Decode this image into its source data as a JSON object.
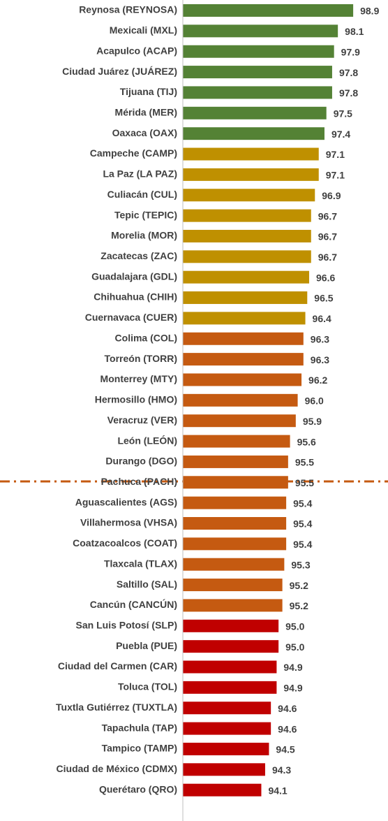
{
  "chart_data": {
    "type": "barh",
    "categories": [
      "Reynosa (REYNOSA)",
      "Mexicali (MXL)",
      "Acapulco (ACAP)",
      "Ciudad Juárez (JUÁREZ)",
      "Tijuana (TIJ)",
      "Mérida (MER)",
      "Oaxaca (OAX)",
      "Campeche (CAMP)",
      "La Paz (LA PAZ)",
      "Culiacán (CUL)",
      "Tepic (TEPIC)",
      "Morelia (MOR)",
      "Zacatecas (ZAC)",
      "Guadalajara (GDL)",
      "Chihuahua (CHIH)",
      "Cuernavaca (CUER)",
      "Colima (COL)",
      "Torreón (TORR)",
      "Monterrey (MTY)",
      "Hermosillo (HMO)",
      "Veracruz (VER)",
      "León (LEÓN)",
      "Durango (DGO)",
      "Pachuca (PACH)",
      "Aguascalientes (AGS)",
      "Villahermosa (VHSA)",
      "Coatzacoalcos (COAT)",
      "Tlaxcala (TLAX)",
      "Saltillo (SAL)",
      "Cancún (CANCÚN)",
      "San Luis Potosí (SLP)",
      "Puebla (PUE)",
      "Ciudad del Carmen (CAR)",
      "Toluca (TOL)",
      "Tuxtla Gutiérrez (TUXTLA)",
      "Tapachula (TAP)",
      "Tampico (TAMP)",
      "Ciudad de México (CDMX)",
      "Querétaro (QRO)"
    ],
    "values": [
      98.9,
      98.1,
      97.9,
      97.8,
      97.8,
      97.5,
      97.4,
      97.1,
      97.1,
      96.9,
      96.7,
      96.7,
      96.7,
      96.6,
      96.5,
      96.4,
      96.3,
      96.3,
      96.2,
      96.0,
      95.9,
      95.6,
      95.5,
      95.5,
      95.4,
      95.4,
      95.4,
      95.3,
      95.2,
      95.2,
      95.0,
      95.0,
      94.9,
      94.9,
      94.6,
      94.6,
      94.5,
      94.3,
      94.1
    ],
    "value_labels": [
      "98.9",
      "98.1",
      "97.9",
      "97.8",
      "97.8",
      "97.5",
      "97.4",
      "97.1",
      "97.1",
      "96.9",
      "96.7",
      "96.7",
      "96.7",
      "96.6",
      "96.5",
      "96.4",
      "96.3",
      "96.3",
      "96.2",
      "96.0",
      "95.9",
      "95.6",
      "95.5",
      "95.5",
      "95.4",
      "95.4",
      "95.4",
      "95.3",
      "95.2",
      "95.2",
      "95.0",
      "95.0",
      "94.9",
      "94.9",
      "94.6",
      "94.6",
      "94.5",
      "94.3",
      "94.1"
    ],
    "colors": [
      "#548235",
      "#548235",
      "#548235",
      "#548235",
      "#548235",
      "#548235",
      "#548235",
      "#bf9000",
      "#bf9000",
      "#bf9000",
      "#bf9000",
      "#bf9000",
      "#bf9000",
      "#bf9000",
      "#bf9000",
      "#bf9000",
      "#c55a11",
      "#c55a11",
      "#c55a11",
      "#c55a11",
      "#c55a11",
      "#c55a11",
      "#c55a11",
      "#c55a11",
      "#c55a11",
      "#c55a11",
      "#c55a11",
      "#c55a11",
      "#c55a11",
      "#c55a11",
      "#c00000",
      "#c00000",
      "#c00000",
      "#c00000",
      "#c00000",
      "#c00000",
      "#c00000",
      "#c00000",
      "#c00000"
    ],
    "xlim": [
      90,
      100.5
    ]
  }
}
